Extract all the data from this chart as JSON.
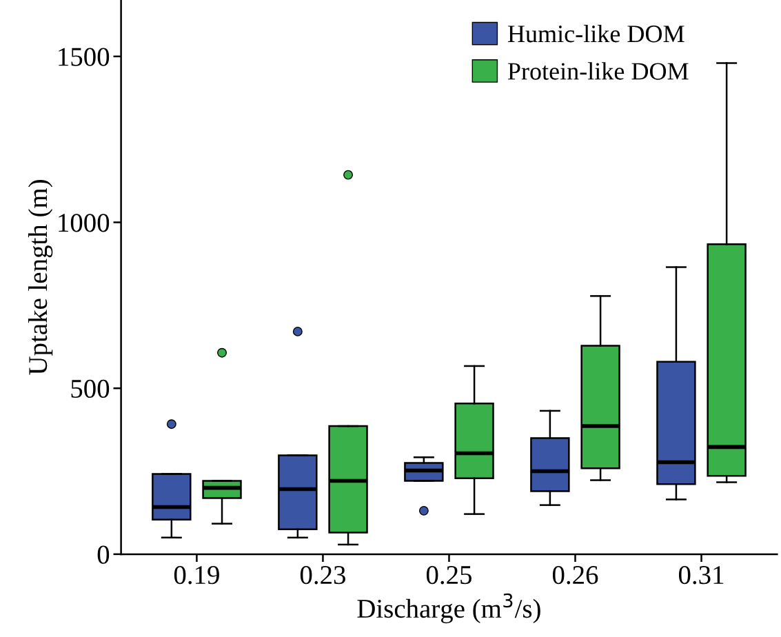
{
  "chart_data": {
    "type": "box",
    "xlabel": "Discharge (m$^{3}$/s)",
    "ylabel": "Uptake length (m)",
    "categories": [
      "0.19",
      "0.23",
      "0.25",
      "0.26",
      "0.31"
    ],
    "ylim": [
      0,
      1670
    ],
    "yticks": [
      0,
      500,
      1000,
      1500
    ],
    "grid": false,
    "legend": "top right",
    "series": [
      {
        "name": "Humic-like DOM",
        "color": "#3a55a4",
        "boxes": [
          {
            "low": 50,
            "q1": 104,
            "median": 142,
            "q3": 242,
            "high": 242,
            "outliers": [
              392
            ]
          },
          {
            "low": 50,
            "q1": 75,
            "median": 196,
            "q3": 298,
            "high": 298,
            "outliers": [
              671
            ]
          },
          {
            "low": 221,
            "q1": 221,
            "median": 252,
            "q3": 275,
            "high": 292,
            "outliers": [
              131
            ]
          },
          {
            "low": 148,
            "q1": 190,
            "median": 250,
            "q3": 350,
            "high": 432
          },
          {
            "low": 165,
            "q1": 211,
            "median": 277,
            "q3": 580,
            "high": 865
          }
        ]
      },
      {
        "name": "Protein-like DOM",
        "color": "#39b04a",
        "boxes": [
          {
            "low": 92,
            "q1": 169,
            "median": 200,
            "q3": 221,
            "high": 221,
            "outliers": [
              607
            ]
          },
          {
            "low": 29,
            "q1": 65,
            "median": 221,
            "q3": 386,
            "high": 386,
            "outliers": [
              1143
            ]
          },
          {
            "low": 121,
            "q1": 229,
            "median": 304,
            "q3": 454,
            "high": 567
          },
          {
            "low": 223,
            "q1": 259,
            "median": 386,
            "q3": 628,
            "high": 778
          },
          {
            "low": 217,
            "q1": 236,
            "median": 323,
            "q3": 934,
            "high": 1480
          }
        ]
      }
    ]
  }
}
